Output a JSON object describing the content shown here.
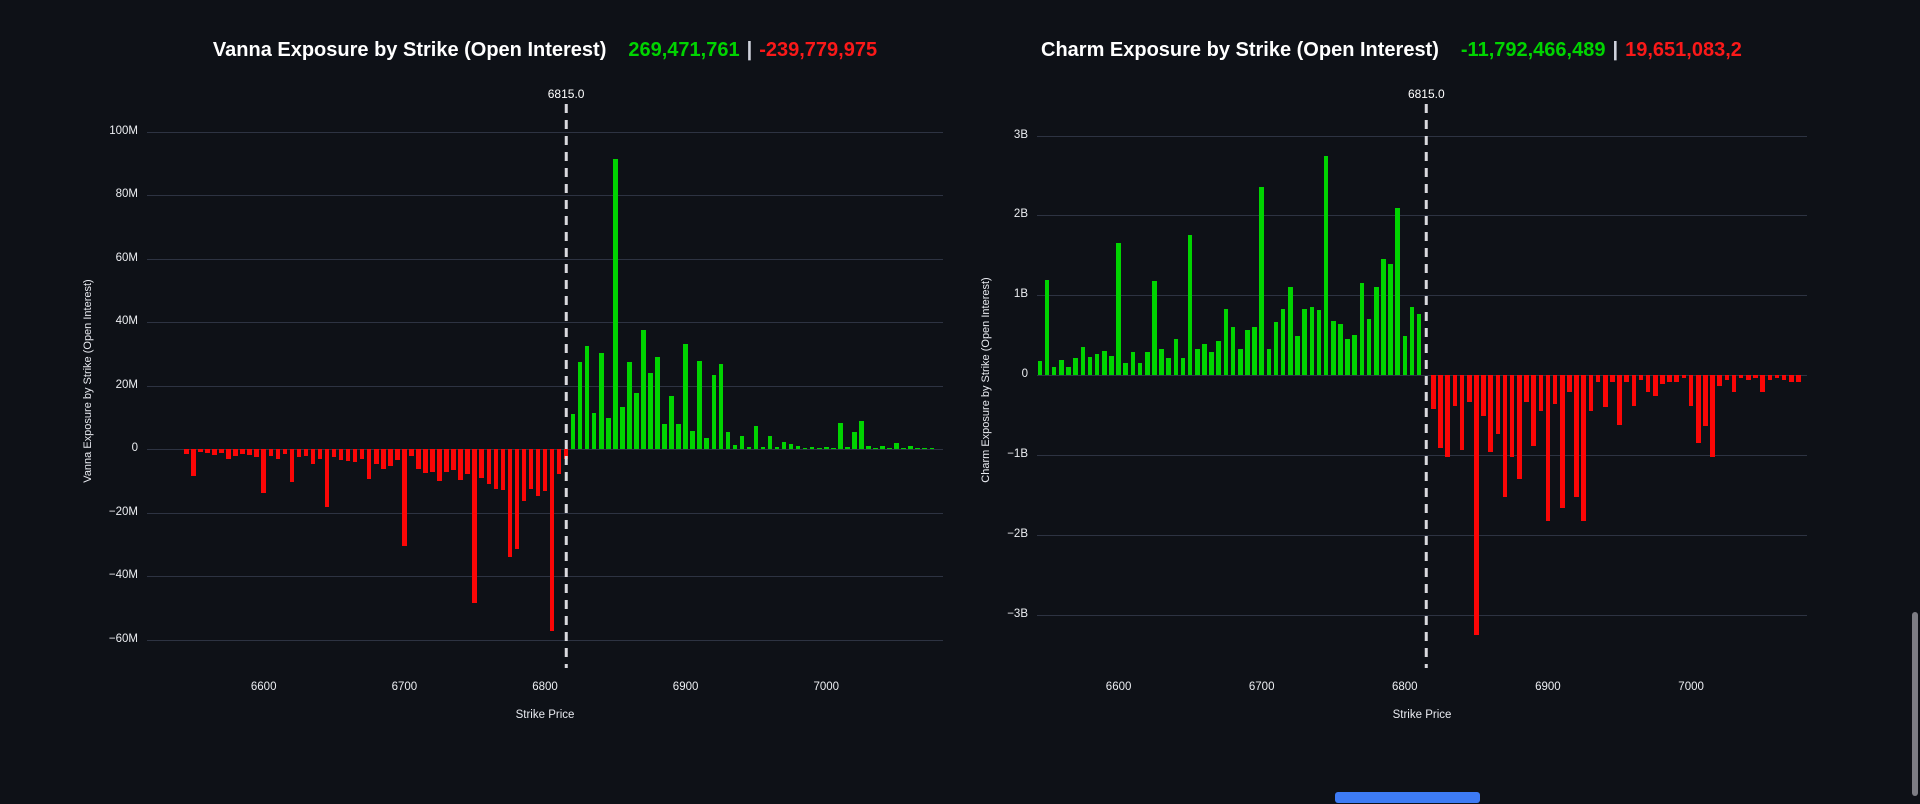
{
  "ui": {
    "background_color": "#0e1117",
    "vertical_scrollbar_color": "#7d7d84",
    "horizontal_scrollbar_color": "#3d7bf5"
  },
  "chart_data": [
    {
      "type": "bar",
      "title": "Vanna Exposure by Strike (Open Interest)",
      "totals": {
        "green": "269,471,761",
        "separator": "|",
        "red": "-239,779,975"
      },
      "y_axis_title": "Vanna Exposure by Strike (Open Interest)",
      "x_axis_title": "Strike Price",
      "unit": "M",
      "colors": {
        "positive": "#00d400",
        "negative": "#fb0606"
      },
      "grid": true,
      "xlim": [
        6517,
        7083
      ],
      "ylim": [
        -65.8,
        108.4
      ],
      "spot_line": {
        "label": "6815.0",
        "value": 6815
      },
      "y_ticks": [
        {
          "label": "100M",
          "value": 100
        },
        {
          "label": "80M",
          "value": 80
        },
        {
          "label": "60M",
          "value": 60
        },
        {
          "label": "40M",
          "value": 40
        },
        {
          "label": "20M",
          "value": 20
        },
        {
          "label": "0",
          "value": 0
        },
        {
          "label": "−20M",
          "value": -20
        },
        {
          "label": "−40M",
          "value": -40
        },
        {
          "label": "−60M",
          "value": -60
        }
      ],
      "x_ticks": [
        6600,
        6700,
        6800,
        6900,
        7000
      ],
      "strikes": [
        6545,
        6550,
        6555,
        6560,
        6565,
        6570,
        6575,
        6580,
        6585,
        6590,
        6595,
        6600,
        6605,
        6610,
        6615,
        6620,
        6625,
        6630,
        6635,
        6640,
        6645,
        6650,
        6655,
        6660,
        6665,
        6670,
        6675,
        6680,
        6685,
        6690,
        6695,
        6700,
        6705,
        6710,
        6715,
        6720,
        6725,
        6730,
        6735,
        6740,
        6745,
        6750,
        6755,
        6760,
        6765,
        6770,
        6775,
        6780,
        6785,
        6790,
        6795,
        6800,
        6805,
        6810,
        6815,
        6820,
        6825,
        6830,
        6835,
        6840,
        6845,
        6850,
        6855,
        6860,
        6865,
        6870,
        6875,
        6880,
        6885,
        6890,
        6895,
        6900,
        6905,
        6910,
        6915,
        6920,
        6925,
        6930,
        6935,
        6940,
        6945,
        6950,
        6955,
        6960,
        6965,
        6970,
        6975,
        6980,
        6985,
        6990,
        6995,
        7000,
        7005,
        7010,
        7015,
        7020,
        7025,
        7030,
        7035,
        7040,
        7045,
        7050,
        7055,
        7060,
        7065,
        7070,
        7075
      ],
      "values": [
        -1.5,
        -8.4,
        -0.9,
        -1.3,
        -1.9,
        -1.4,
        -3.2,
        -2.3,
        -1.6,
        -1.9,
        -2.6,
        -13.7,
        -2.3,
        -3.2,
        -1.7,
        -10.5,
        -2.6,
        -2.1,
        -4.7,
        -3.2,
        -18.4,
        -2.4,
        -3.3,
        -3.7,
        -4.2,
        -3.2,
        -9.5,
        -4.7,
        -6.3,
        -5.3,
        -3.4,
        -30.5,
        -2.1,
        -6.3,
        -7.4,
        -7.3,
        -10.1,
        -7.3,
        -6.5,
        -9.6,
        -8.0,
        -48.4,
        -9.0,
        -11.0,
        -12.5,
        -13.0,
        -34.0,
        -31.5,
        -16.3,
        -12.6,
        -14.7,
        -13.2,
        -57.2,
        -8.0,
        -3.0,
        11.2,
        27.6,
        32.6,
        11.5,
        30.2,
        9.7,
        91.5,
        13.3,
        27.6,
        17.8,
        37.6,
        24.1,
        29.0,
        7.8,
        16.8,
        7.8,
        33.1,
        5.7,
        27.9,
        3.4,
        23.4,
        26.9,
        5.5,
        1.4,
        4.2,
        0.6,
        7.3,
        0.8,
        4.0,
        0.6,
        2.4,
        1.7,
        1.0,
        0.4,
        0.6,
        0.5,
        0.7,
        0.5,
        8.4,
        0.6,
        5.5,
        8.8,
        1.0,
        0.3,
        0.9,
        0.4,
        2.0,
        0.4,
        1.1,
        0.4,
        0.5,
        0.4
      ]
    },
    {
      "type": "bar",
      "title": "Charm Exposure by Strike (Open Interest)",
      "totals": {
        "green": "-11,792,466,489",
        "separator": "|",
        "red": "19,651,083,2"
      },
      "y_axis_title": "Charm Exposure by Strike (Open Interest)",
      "x_axis_title": "Strike Price",
      "unit": "B",
      "colors": {
        "positive": "#00d400",
        "negative": "#fb0606"
      },
      "grid": true,
      "xlim": [
        6543,
        7081
      ],
      "ylim": [
        -3.54,
        3.32
      ],
      "spot_line": {
        "label": "6815.0",
        "value": 6815
      },
      "y_ticks": [
        {
          "label": "3B",
          "value": 3
        },
        {
          "label": "2B",
          "value": 2
        },
        {
          "label": "1B",
          "value": 1
        },
        {
          "label": "0",
          "value": 0
        },
        {
          "label": "−1B",
          "value": -1
        },
        {
          "label": "−2B",
          "value": -2
        },
        {
          "label": "−3B",
          "value": -3
        }
      ],
      "x_ticks": [
        6600,
        6700,
        6800,
        6900,
        7000
      ],
      "strikes": [
        6545,
        6550,
        6555,
        6560,
        6565,
        6570,
        6575,
        6580,
        6585,
        6590,
        6595,
        6600,
        6605,
        6610,
        6615,
        6620,
        6625,
        6630,
        6635,
        6640,
        6645,
        6650,
        6655,
        6660,
        6665,
        6670,
        6675,
        6680,
        6685,
        6690,
        6695,
        6700,
        6705,
        6710,
        6715,
        6720,
        6725,
        6730,
        6735,
        6740,
        6745,
        6750,
        6755,
        6760,
        6765,
        6770,
        6775,
        6780,
        6785,
        6790,
        6795,
        6800,
        6805,
        6810,
        6820,
        6825,
        6830,
        6835,
        6840,
        6845,
        6850,
        6855,
        6860,
        6865,
        6870,
        6875,
        6880,
        6885,
        6890,
        6895,
        6900,
        6905,
        6910,
        6915,
        6920,
        6925,
        6930,
        6935,
        6940,
        6945,
        6950,
        6955,
        6960,
        6965,
        6970,
        6975,
        6980,
        6985,
        6990,
        6995,
        7000,
        7005,
        7010,
        7015,
        7020,
        7025,
        7030,
        7035,
        7040,
        7045,
        7050,
        7055,
        7060,
        7065,
        7070,
        7075
      ],
      "values": [
        0.18,
        1.19,
        0.1,
        0.19,
        0.1,
        0.21,
        0.35,
        0.23,
        0.26,
        0.3,
        0.24,
        1.65,
        0.15,
        0.29,
        0.15,
        0.29,
        1.18,
        0.33,
        0.21,
        0.46,
        0.22,
        1.76,
        0.33,
        0.39,
        0.29,
        0.43,
        0.83,
        0.6,
        0.33,
        0.57,
        0.6,
        2.36,
        0.33,
        0.67,
        0.83,
        1.1,
        0.49,
        0.83,
        0.85,
        0.82,
        2.74,
        0.68,
        0.64,
        0.46,
        0.5,
        1.15,
        0.7,
        1.1,
        1.45,
        1.39,
        2.1,
        0.49,
        0.86,
        0.77,
        -0.43,
        -0.91,
        -1.02,
        -0.38,
        -0.94,
        -0.34,
        -3.25,
        -0.51,
        -0.96,
        -0.74,
        -1.53,
        -1.02,
        -1.3,
        -0.34,
        -0.89,
        -0.45,
        -1.83,
        -0.36,
        -1.66,
        -0.21,
        -1.53,
        -1.83,
        -0.45,
        -0.09,
        -0.4,
        -0.09,
        -0.62,
        -0.09,
        -0.38,
        -0.06,
        -0.21,
        -0.26,
        -0.11,
        -0.09,
        -0.09,
        -0.04,
        -0.38,
        -0.85,
        -0.64,
        -1.02,
        -0.13,
        -0.06,
        -0.21,
        -0.04,
        -0.06,
        -0.04,
        -0.21,
        -0.06,
        -0.04,
        -0.06,
        -0.09,
        -0.09
      ]
    }
  ]
}
